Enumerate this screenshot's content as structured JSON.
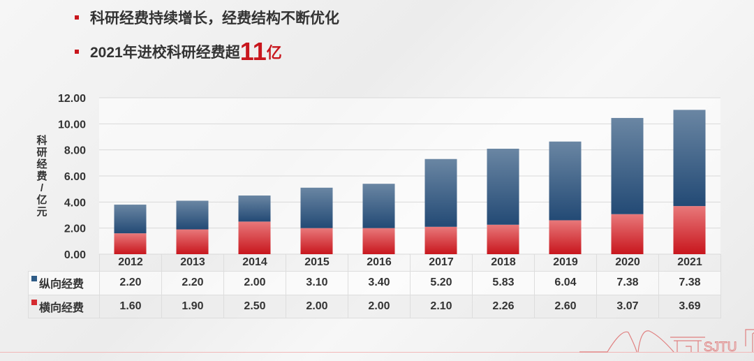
{
  "bullets": {
    "line1": "科研经费持续增长，经费结构不断优化",
    "line2_prefix": "2021年进校科研经费超",
    "line2_number": "11",
    "line2_unit": "亿"
  },
  "logo": {
    "text": "SJTU"
  },
  "colors": {
    "vertical": "#2e5b86",
    "horizontal": "#d42a30",
    "accent": "#c8161d"
  },
  "chart_data": {
    "type": "bar",
    "stacked": true,
    "categories": [
      "2012",
      "2013",
      "2014",
      "2015",
      "2016",
      "2017",
      "2018",
      "2019",
      "2020",
      "2021"
    ],
    "series": [
      {
        "name": "纵向经费",
        "values": [
          2.2,
          2.2,
          2.0,
          3.1,
          3.4,
          5.2,
          5.83,
          6.04,
          7.38,
          7.38
        ],
        "display": [
          "2.20",
          "2.20",
          "2.00",
          "3.10",
          "3.40",
          "5.20",
          "5.83",
          "6.04",
          "7.38",
          "7.38"
        ]
      },
      {
        "name": "横向经费",
        "values": [
          1.6,
          1.9,
          2.5,
          2.0,
          2.0,
          2.1,
          2.26,
          2.6,
          3.07,
          3.69
        ],
        "display": [
          "1.60",
          "1.90",
          "2.50",
          "2.00",
          "2.00",
          "2.10",
          "2.26",
          "2.60",
          "3.07",
          "3.69"
        ]
      }
    ],
    "ylabel": "科研经费 / 亿元",
    "ylim": [
      0,
      12
    ],
    "yticks": [
      "0.00",
      "2.00",
      "4.00",
      "6.00",
      "8.00",
      "10.00",
      "12.00"
    ],
    "grid": true,
    "legend": "data-table"
  }
}
